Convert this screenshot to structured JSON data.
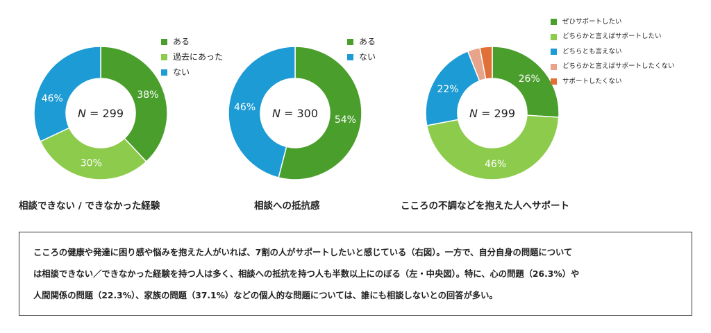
{
  "colors": {
    "dark_green": "#4a9e2c",
    "light_green": "#8ccb4b",
    "blue": "#1c9bd4",
    "salmon": "#e8a48a",
    "orange": "#e07038"
  },
  "chart_data": [
    {
      "type": "pie",
      "title": "相談できない / できなかった経験",
      "center_label": "N = 299",
      "slices": [
        {
          "label": "ある",
          "value": 38,
          "value_label": "38%",
          "color": "#4a9e2c"
        },
        {
          "label": "過去にあった",
          "value": 30,
          "value_label": "30%",
          "color": "#8ccb4b"
        },
        {
          "label": "ない",
          "value": 32,
          "value_label": "",
          "color": "#1c9bd4"
        }
      ],
      "extra_labels": [
        "46%"
      ],
      "legend": [
        "ある",
        "過去にあった",
        "ない"
      ]
    },
    {
      "type": "pie",
      "title": "相談への抵抗感",
      "center_label": "N = 300",
      "slices": [
        {
          "label": "ある",
          "value": 54,
          "value_label": "54%",
          "color": "#4a9e2c"
        },
        {
          "label": "ない",
          "value": 46,
          "value_label": "46%",
          "color": "#1c9bd4"
        }
      ],
      "legend": [
        "ある",
        "ない"
      ]
    },
    {
      "type": "pie",
      "title": "こころの不調などを抱えた人へサポート",
      "center_label": "N = 299",
      "slices": [
        {
          "label": "ぜひサポートしたい",
          "value": 26,
          "value_label": "26%",
          "color": "#4a9e2c"
        },
        {
          "label": "どちらかと言えばサポートしたい",
          "value": 46,
          "value_label": "46%",
          "color": "#8ccb4b"
        },
        {
          "label": "どちらとも言えない",
          "value": 22,
          "value_label": "22%",
          "color": "#1c9bd4"
        },
        {
          "label": "どちらかと言えばサポートしたくない",
          "value": 3,
          "value_label": "",
          "color": "#e8a48a"
        },
        {
          "label": "サポートしたくない",
          "value": 3,
          "value_label": "",
          "color": "#e07038"
        }
      ],
      "legend": [
        "ぜひサポートしたい",
        "どちらかと言えばサポートしたい",
        "どちらとも言えない",
        "どちらかと言えばサポートしたくない",
        "サポートしたくない"
      ]
    }
  ],
  "note": {
    "lines": [
      "こころの健康や発達に困り感や悩みを抱えた人がいれば、7割の人がサポートしたいと感じている（右図）。一方で、自分自身の問題について",
      "は相談できない／できなかった経験を持つ人は多く、相談への抵抗を持つ人も半数以上にのぼる（左・中央図）。特に、心の問題（26.3%）や",
      "人間関係の問題（22.3%）、家族の問題（37.1%）などの個人的な問題については、誰にも相談しないとの回答が多い。"
    ]
  }
}
